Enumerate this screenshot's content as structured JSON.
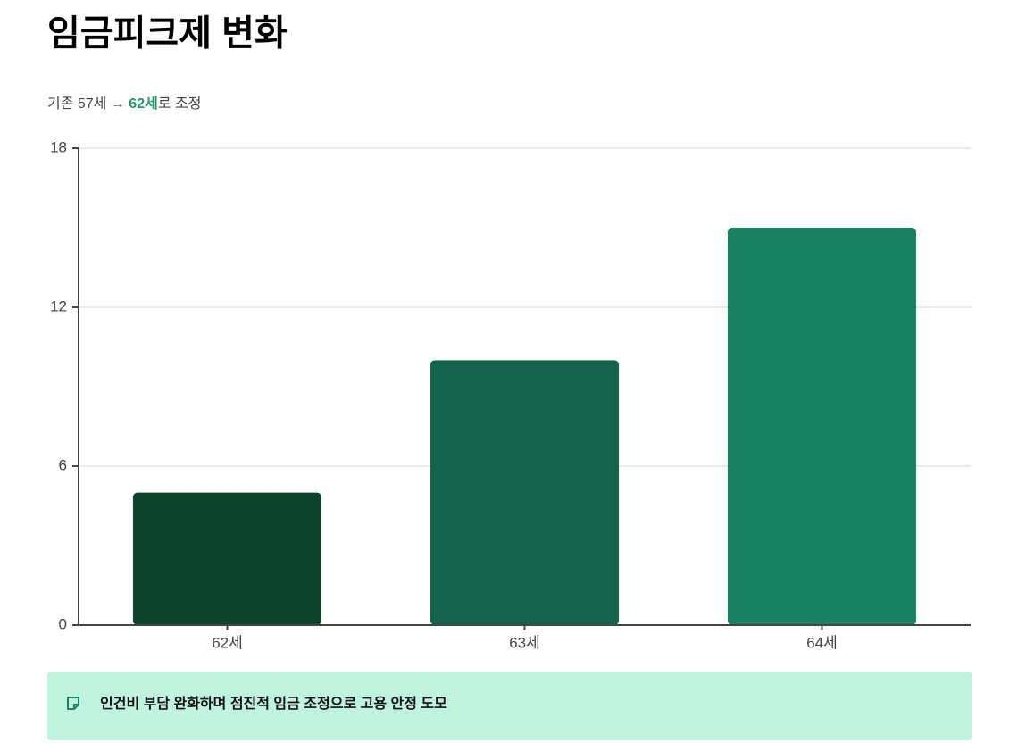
{
  "chart_data": {
    "type": "bar",
    "title": "임금피크제 변화",
    "subtitle": {
      "prefix": "기존 57세 → ",
      "highlight": "62세",
      "suffix": "로 조정"
    },
    "categories": [
      "62세",
      "63세",
      "64세"
    ],
    "values": [
      5,
      10,
      15
    ],
    "colors": [
      "#0d4430",
      "#13644a",
      "#1a8260"
    ],
    "ylim": [
      0,
      18
    ],
    "yticks": [
      0,
      6,
      12,
      18
    ],
    "grid": true,
    "note": "인건비 부담 완화하며 점진적 임금 조정으로 고용 안정 도모"
  }
}
